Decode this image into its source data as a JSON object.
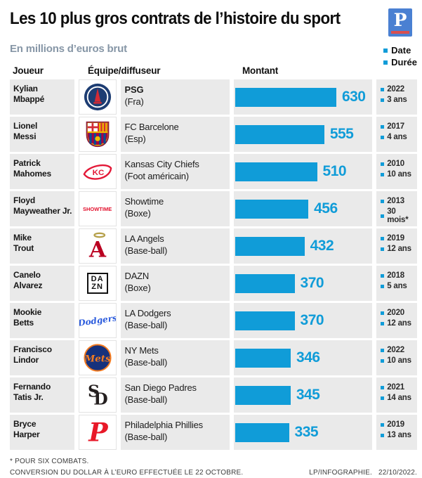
{
  "header": {
    "title": "Les 10 plus gros contrats de l’histoire du sport",
    "subtitle": "En millions d’euros brut",
    "logo_letter": "P"
  },
  "columns": {
    "player": "Joueur",
    "team": "Équipe/diffuseur",
    "amount": "Montant"
  },
  "legend": {
    "date": "Date",
    "duration": "Durée"
  },
  "colors": {
    "accent_blue": "#109cd8",
    "row_gray": "#eaeaea",
    "subtitle_gray_blue": "#8696a6",
    "logo_blue": "#4a80d2",
    "logo_red": "#d94f4f"
  },
  "chart_data": {
    "type": "bar",
    "title": "Les 10 plus gros contrats de l’histoire du sport",
    "unit": "millions d’euros brut",
    "xlim": [
      0,
      630
    ],
    "legend": [
      "Date",
      "Durée"
    ],
    "rows": [
      {
        "first": "Kylian",
        "last": "Mbappé",
        "team": "PSG",
        "league": "(Fra)",
        "value": 630,
        "date": "2022",
        "duration": "3 ans",
        "logo": "psg",
        "team_bold": true
      },
      {
        "first": "Lionel",
        "last": "Messi",
        "team": "FC Barcelone",
        "league": "(Esp)",
        "value": 555,
        "date": "2017",
        "duration": "4 ans",
        "logo": "barcelona"
      },
      {
        "first": "Patrick",
        "last": "Mahomes",
        "team": "Kansas City Chiefs",
        "league": "(Foot américain)",
        "value": 510,
        "date": "2010",
        "duration": "10 ans",
        "logo": "chiefs"
      },
      {
        "first": "Floyd",
        "last": "Mayweather Jr.",
        "team": "Showtime",
        "league": "(Boxe)",
        "value": 456,
        "date": "2013",
        "duration": "30 mois*",
        "logo": "showtime"
      },
      {
        "first": "Mike",
        "last": "Trout",
        "team": "LA Angels",
        "league": "(Base-ball)",
        "value": 432,
        "date": "2019",
        "duration": "12 ans",
        "logo": "angels"
      },
      {
        "first": "Canelo",
        "last": "Alvarez",
        "team": "DAZN",
        "league": "(Boxe)",
        "value": 370,
        "date": "2018",
        "duration": "5 ans",
        "logo": "dazn"
      },
      {
        "first": "Mookie",
        "last": "Betts",
        "team": "LA Dodgers",
        "league": "(Base-ball)",
        "value": 370,
        "date": "2020",
        "duration": "12 ans",
        "logo": "dodgers"
      },
      {
        "first": "Francisco",
        "last": "Lindor",
        "team": "NY Mets",
        "league": "(Base-ball)",
        "value": 346,
        "date": "2022",
        "duration": "10 ans",
        "logo": "mets"
      },
      {
        "first": "Fernando",
        "last": "Tatis Jr.",
        "team": "San Diego Padres",
        "league": "(Base-ball)",
        "value": 345,
        "date": "2021",
        "duration": "14 ans",
        "logo": "padres"
      },
      {
        "first": "Bryce",
        "last": "Harper",
        "team": "Philadelphia Phillies",
        "league": "(Base-ball)",
        "value": 335,
        "date": "2019",
        "duration": "13 ans",
        "logo": "phillies"
      }
    ]
  },
  "footer": {
    "note1": "* POUR SIX COMBATS.",
    "note2": "CONVERSION DU DOLLAR À L’EURO EFFECTUÉE LE 22 OCTOBRE.",
    "credit": "LP/INFOGRAPHIE.",
    "date": "22/10/2022."
  }
}
